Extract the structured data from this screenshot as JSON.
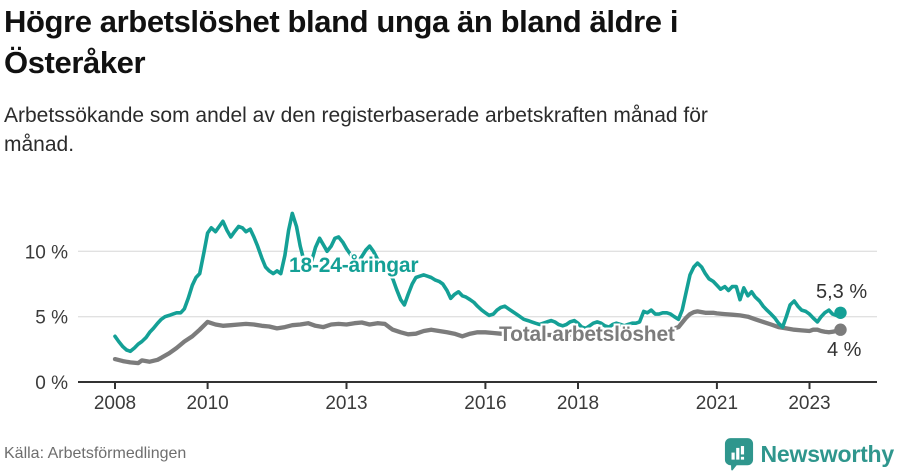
{
  "header": {
    "title": "Högre arbetslöshet bland unga än bland äldre i\nÖsteråker",
    "subtitle": "Arbetssökande som andel av den registerbaserade arbetskraften månad för\nmånad."
  },
  "footer": {
    "source": "Källa: Arbetsförmedlingen",
    "brand": "Newsworthy",
    "brand_icon": "newsworthy-speech-bubble-barchart-icon"
  },
  "colors": {
    "young": "#14a096",
    "total": "#7c7c7c",
    "grid": "#e1e1e1",
    "axis": "#333333",
    "tick_text": "#3b3b3b",
    "end_label_text": "#333333",
    "brand": "#2f968d"
  },
  "chart_data": {
    "type": "line",
    "title": "Högre arbetslöshet bland unga än bland äldre i Österåker",
    "subtitle": "Arbetssökande som andel av den registerbaserade arbetskraften månad för månad.",
    "unit": "%",
    "grid": "horizontal-only",
    "legend_position": "inline-labels-on-lines",
    "x_range": [
      2008.0,
      2023.67
    ],
    "ylim": [
      0,
      13.5
    ],
    "yticks": [
      {
        "value": 0,
        "label": "0 %"
      },
      {
        "value": 5,
        "label": "5 %"
      },
      {
        "value": 10,
        "label": "10 %"
      }
    ],
    "xticks": [
      {
        "value": 2008,
        "label": "2008"
      },
      {
        "value": 2010,
        "label": "2010"
      },
      {
        "value": 2013,
        "label": "2013"
      },
      {
        "value": 2016,
        "label": "2016"
      },
      {
        "value": 2018,
        "label": "2018"
      },
      {
        "value": 2021,
        "label": "2021"
      },
      {
        "value": 2023,
        "label": "2023"
      }
    ],
    "series": [
      {
        "id": "young",
        "name": "18-24-åringar",
        "color_key": "young",
        "end_label": "5,3 %",
        "end_value": 5.3,
        "points": [
          [
            2008.0,
            3.5
          ],
          [
            2008.08,
            3.1
          ],
          [
            2008.17,
            2.7
          ],
          [
            2008.25,
            2.45
          ],
          [
            2008.33,
            2.35
          ],
          [
            2008.42,
            2.6
          ],
          [
            2008.5,
            2.9
          ],
          [
            2008.58,
            3.1
          ],
          [
            2008.67,
            3.4
          ],
          [
            2008.75,
            3.8
          ],
          [
            2008.83,
            4.1
          ],
          [
            2008.92,
            4.5
          ],
          [
            2009.0,
            4.8
          ],
          [
            2009.08,
            5.0
          ],
          [
            2009.17,
            5.1
          ],
          [
            2009.25,
            5.2
          ],
          [
            2009.33,
            5.3
          ],
          [
            2009.42,
            5.3
          ],
          [
            2009.5,
            5.6
          ],
          [
            2009.58,
            6.4
          ],
          [
            2009.67,
            7.4
          ],
          [
            2009.75,
            8.0
          ],
          [
            2009.83,
            8.3
          ],
          [
            2009.92,
            9.9
          ],
          [
            2010.0,
            11.4
          ],
          [
            2010.08,
            11.8
          ],
          [
            2010.17,
            11.5
          ],
          [
            2010.25,
            11.9
          ],
          [
            2010.33,
            12.3
          ],
          [
            2010.42,
            11.6
          ],
          [
            2010.5,
            11.1
          ],
          [
            2010.58,
            11.5
          ],
          [
            2010.67,
            11.9
          ],
          [
            2010.75,
            11.8
          ],
          [
            2010.83,
            11.5
          ],
          [
            2010.92,
            11.7
          ],
          [
            2011.0,
            11.1
          ],
          [
            2011.08,
            10.4
          ],
          [
            2011.17,
            9.5
          ],
          [
            2011.25,
            8.8
          ],
          [
            2011.33,
            8.5
          ],
          [
            2011.42,
            8.3
          ],
          [
            2011.5,
            8.5
          ],
          [
            2011.58,
            8.3
          ],
          [
            2011.67,
            9.7
          ],
          [
            2011.75,
            11.6
          ],
          [
            2011.83,
            12.9
          ],
          [
            2011.92,
            11.9
          ],
          [
            2012.0,
            10.4
          ],
          [
            2012.08,
            9.3
          ],
          [
            2012.17,
            8.6
          ],
          [
            2012.25,
            9.3
          ],
          [
            2012.33,
            10.3
          ],
          [
            2012.42,
            11.0
          ],
          [
            2012.5,
            10.5
          ],
          [
            2012.58,
            10.0
          ],
          [
            2012.67,
            10.4
          ],
          [
            2012.75,
            11.0
          ],
          [
            2012.83,
            11.1
          ],
          [
            2012.92,
            10.7
          ],
          [
            2013.0,
            10.2
          ],
          [
            2013.08,
            9.8
          ],
          [
            2013.17,
            9.3
          ],
          [
            2013.25,
            9.2
          ],
          [
            2013.33,
            9.6
          ],
          [
            2013.42,
            10.1
          ],
          [
            2013.5,
            10.4
          ],
          [
            2013.58,
            10.0
          ],
          [
            2013.67,
            9.4
          ],
          [
            2013.75,
            9.2
          ],
          [
            2013.83,
            8.9
          ],
          [
            2013.92,
            8.3
          ],
          [
            2014.0,
            7.9
          ],
          [
            2014.08,
            7.1
          ],
          [
            2014.17,
            6.3
          ],
          [
            2014.25,
            5.9
          ],
          [
            2014.33,
            6.7
          ],
          [
            2014.42,
            7.5
          ],
          [
            2014.5,
            8.0
          ],
          [
            2014.58,
            8.1
          ],
          [
            2014.67,
            8.2
          ],
          [
            2014.75,
            8.1
          ],
          [
            2014.83,
            8.0
          ],
          [
            2014.92,
            7.8
          ],
          [
            2015.0,
            7.7
          ],
          [
            2015.08,
            7.5
          ],
          [
            2015.17,
            7.0
          ],
          [
            2015.25,
            6.4
          ],
          [
            2015.33,
            6.7
          ],
          [
            2015.42,
            6.9
          ],
          [
            2015.5,
            6.6
          ],
          [
            2015.58,
            6.5
          ],
          [
            2015.67,
            6.3
          ],
          [
            2015.75,
            6.1
          ],
          [
            2015.83,
            5.8
          ],
          [
            2015.92,
            5.5
          ],
          [
            2016.0,
            5.3
          ],
          [
            2016.08,
            5.1
          ],
          [
            2016.17,
            5.2
          ],
          [
            2016.25,
            5.5
          ],
          [
            2016.33,
            5.7
          ],
          [
            2016.42,
            5.8
          ],
          [
            2016.5,
            5.6
          ],
          [
            2016.58,
            5.4
          ],
          [
            2016.67,
            5.2
          ],
          [
            2016.75,
            5.0
          ],
          [
            2016.83,
            4.8
          ],
          [
            2016.92,
            4.7
          ],
          [
            2017.0,
            4.6
          ],
          [
            2017.08,
            4.5
          ],
          [
            2017.17,
            4.4
          ],
          [
            2017.25,
            4.5
          ],
          [
            2017.33,
            4.6
          ],
          [
            2017.42,
            4.7
          ],
          [
            2017.5,
            4.6
          ],
          [
            2017.58,
            4.4
          ],
          [
            2017.67,
            4.3
          ],
          [
            2017.75,
            4.4
          ],
          [
            2017.83,
            4.6
          ],
          [
            2017.92,
            4.7
          ],
          [
            2018.0,
            4.5
          ],
          [
            2018.08,
            4.2
          ],
          [
            2018.17,
            4.1
          ],
          [
            2018.25,
            4.3
          ],
          [
            2018.33,
            4.5
          ],
          [
            2018.42,
            4.6
          ],
          [
            2018.5,
            4.5
          ],
          [
            2018.58,
            4.3
          ],
          [
            2018.67,
            4.2
          ],
          [
            2018.75,
            4.4
          ],
          [
            2018.83,
            4.5
          ],
          [
            2018.92,
            4.4
          ],
          [
            2019.0,
            4.3
          ],
          [
            2019.08,
            4.4
          ],
          [
            2019.17,
            4.5
          ],
          [
            2019.25,
            4.5
          ],
          [
            2019.33,
            4.6
          ],
          [
            2019.42,
            5.4
          ],
          [
            2019.5,
            5.3
          ],
          [
            2019.58,
            5.5
          ],
          [
            2019.67,
            5.2
          ],
          [
            2019.75,
            5.2
          ],
          [
            2019.83,
            5.3
          ],
          [
            2019.92,
            5.3
          ],
          [
            2020.0,
            5.2
          ],
          [
            2020.08,
            5.0
          ],
          [
            2020.17,
            4.8
          ],
          [
            2020.25,
            5.5
          ],
          [
            2020.33,
            6.8
          ],
          [
            2020.42,
            8.2
          ],
          [
            2020.5,
            8.8
          ],
          [
            2020.58,
            9.1
          ],
          [
            2020.67,
            8.8
          ],
          [
            2020.75,
            8.3
          ],
          [
            2020.83,
            7.9
          ],
          [
            2020.92,
            7.7
          ],
          [
            2021.0,
            7.4
          ],
          [
            2021.08,
            7.1
          ],
          [
            2021.17,
            7.3
          ],
          [
            2021.25,
            7.0
          ],
          [
            2021.33,
            7.3
          ],
          [
            2021.42,
            7.3
          ],
          [
            2021.5,
            6.3
          ],
          [
            2021.58,
            7.2
          ],
          [
            2021.67,
            6.6
          ],
          [
            2021.75,
            6.9
          ],
          [
            2021.83,
            6.5
          ],
          [
            2021.92,
            6.2
          ],
          [
            2022.0,
            5.8
          ],
          [
            2022.08,
            5.5
          ],
          [
            2022.17,
            5.2
          ],
          [
            2022.25,
            4.9
          ],
          [
            2022.33,
            4.5
          ],
          [
            2022.42,
            4.2
          ],
          [
            2022.5,
            5.0
          ],
          [
            2022.58,
            5.9
          ],
          [
            2022.67,
            6.2
          ],
          [
            2022.75,
            5.8
          ],
          [
            2022.83,
            5.5
          ],
          [
            2022.92,
            5.4
          ],
          [
            2023.0,
            5.2
          ],
          [
            2023.08,
            4.9
          ],
          [
            2023.17,
            4.6
          ],
          [
            2023.25,
            5.0
          ],
          [
            2023.33,
            5.3
          ],
          [
            2023.42,
            5.5
          ],
          [
            2023.5,
            5.2
          ],
          [
            2023.58,
            5.1
          ],
          [
            2023.67,
            5.3
          ]
        ]
      },
      {
        "id": "total",
        "name": "Total arbetslöshet",
        "color_key": "total",
        "end_label": "4 %",
        "end_value": 4.0,
        "points": [
          [
            2008.0,
            1.75
          ],
          [
            2008.17,
            1.6
          ],
          [
            2008.33,
            1.5
          ],
          [
            2008.5,
            1.45
          ],
          [
            2008.58,
            1.65
          ],
          [
            2008.75,
            1.55
          ],
          [
            2008.92,
            1.7
          ],
          [
            2009.0,
            1.85
          ],
          [
            2009.17,
            2.2
          ],
          [
            2009.33,
            2.6
          ],
          [
            2009.5,
            3.1
          ],
          [
            2009.67,
            3.5
          ],
          [
            2009.83,
            4.0
          ],
          [
            2010.0,
            4.6
          ],
          [
            2010.17,
            4.4
          ],
          [
            2010.33,
            4.3
          ],
          [
            2010.5,
            4.35
          ],
          [
            2010.67,
            4.4
          ],
          [
            2010.83,
            4.45
          ],
          [
            2011.0,
            4.4
          ],
          [
            2011.17,
            4.3
          ],
          [
            2011.33,
            4.25
          ],
          [
            2011.5,
            4.1
          ],
          [
            2011.67,
            4.2
          ],
          [
            2011.83,
            4.35
          ],
          [
            2012.0,
            4.4
          ],
          [
            2012.17,
            4.5
          ],
          [
            2012.33,
            4.3
          ],
          [
            2012.5,
            4.2
          ],
          [
            2012.67,
            4.4
          ],
          [
            2012.83,
            4.45
          ],
          [
            2013.0,
            4.4
          ],
          [
            2013.17,
            4.5
          ],
          [
            2013.33,
            4.55
          ],
          [
            2013.5,
            4.4
          ],
          [
            2013.67,
            4.5
          ],
          [
            2013.83,
            4.45
          ],
          [
            2013.92,
            4.2
          ],
          [
            2014.0,
            4.0
          ],
          [
            2014.17,
            3.8
          ],
          [
            2014.33,
            3.65
          ],
          [
            2014.5,
            3.7
          ],
          [
            2014.67,
            3.9
          ],
          [
            2014.83,
            4.0
          ],
          [
            2015.0,
            3.9
          ],
          [
            2015.17,
            3.8
          ],
          [
            2015.33,
            3.7
          ],
          [
            2015.5,
            3.5
          ],
          [
            2015.67,
            3.7
          ],
          [
            2015.83,
            3.8
          ],
          [
            2016.0,
            3.8
          ],
          [
            2016.17,
            3.75
          ],
          [
            2016.33,
            3.7
          ],
          [
            2016.5,
            3.65
          ],
          [
            2016.67,
            3.7
          ],
          [
            2016.83,
            3.7
          ],
          [
            2017.0,
            3.7
          ],
          [
            2017.25,
            3.6
          ],
          [
            2017.5,
            3.6
          ],
          [
            2017.75,
            3.65
          ],
          [
            2018.0,
            3.6
          ],
          [
            2018.25,
            3.55
          ],
          [
            2018.5,
            3.6
          ],
          [
            2018.75,
            3.6
          ],
          [
            2019.0,
            3.6
          ],
          [
            2019.25,
            3.7
          ],
          [
            2019.5,
            3.8
          ],
          [
            2019.75,
            3.9
          ],
          [
            2020.0,
            4.0
          ],
          [
            2020.17,
            4.2
          ],
          [
            2020.33,
            4.9
          ],
          [
            2020.42,
            5.2
          ],
          [
            2020.5,
            5.35
          ],
          [
            2020.58,
            5.4
          ],
          [
            2020.75,
            5.3
          ],
          [
            2020.92,
            5.3
          ],
          [
            2021.0,
            5.25
          ],
          [
            2021.17,
            5.2
          ],
          [
            2021.33,
            5.15
          ],
          [
            2021.5,
            5.1
          ],
          [
            2021.67,
            5.0
          ],
          [
            2021.83,
            4.8
          ],
          [
            2022.0,
            4.6
          ],
          [
            2022.17,
            4.4
          ],
          [
            2022.33,
            4.2
          ],
          [
            2022.5,
            4.1
          ],
          [
            2022.67,
            4.0
          ],
          [
            2022.83,
            3.95
          ],
          [
            2023.0,
            3.9
          ],
          [
            2023.08,
            4.0
          ],
          [
            2023.17,
            4.0
          ],
          [
            2023.25,
            3.9
          ],
          [
            2023.33,
            3.85
          ],
          [
            2023.42,
            3.8
          ],
          [
            2023.5,
            3.85
          ],
          [
            2023.58,
            3.9
          ],
          [
            2023.67,
            4.0
          ]
        ]
      }
    ]
  }
}
